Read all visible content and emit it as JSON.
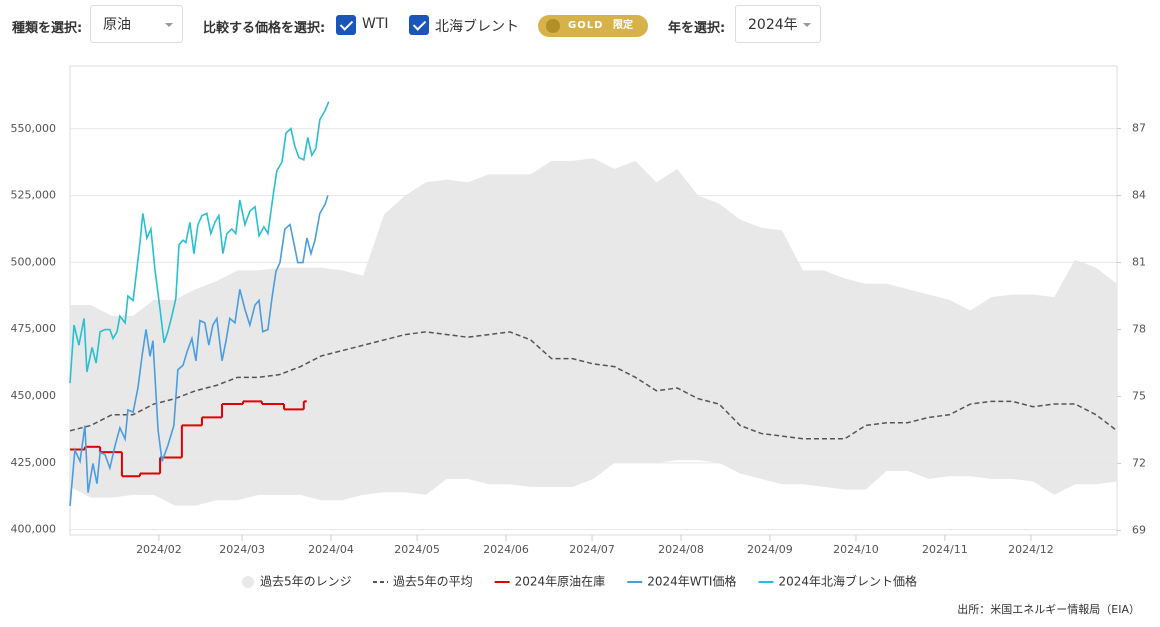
{
  "controls": {
    "type_label": "種類を選択:",
    "type_value": "原油",
    "compare_label": "比較する価格を選択:",
    "checks": [
      "WTI",
      "北海ブレント"
    ],
    "gold": "GOLD",
    "gold_limited": "限定",
    "year_label": "年を選択:",
    "year_value": "2024年"
  },
  "chart_data": {
    "type": "line",
    "source": "出所：米国エネルギー情報局（EIA）",
    "xlim": [
      0,
      365
    ],
    "xticks": [
      {
        "value": 31,
        "label": "2024/02"
      },
      {
        "value": 60,
        "label": "2024/03"
      },
      {
        "value": 91,
        "label": "2024/04"
      },
      {
        "value": 121,
        "label": "2024/05"
      },
      {
        "value": 152,
        "label": "2024/06"
      },
      {
        "value": 182,
        "label": "2024/07"
      },
      {
        "value": 213,
        "label": "2024/08"
      },
      {
        "value": 244,
        "label": "2024/09"
      },
      {
        "value": 274,
        "label": "2024/10"
      },
      {
        "value": 305,
        "label": "2024/11"
      },
      {
        "value": 335,
        "label": "2024/12"
      }
    ],
    "ylim": [
      398000,
      573500
    ],
    "yticks": [
      {
        "value": 400000,
        "label": "400,000"
      },
      {
        "value": 425000,
        "label": "425,000"
      },
      {
        "value": 450000,
        "label": "450,000"
      },
      {
        "value": 475000,
        "label": "475,000"
      },
      {
        "value": 500000,
        "label": "500,000"
      },
      {
        "value": 525000,
        "label": "525,000"
      },
      {
        "value": 550000,
        "label": "550,000"
      }
    ],
    "y2lim": [
      68.8,
      89.8
    ],
    "y2ticks": [
      69,
      72,
      75,
      78,
      81,
      84,
      87
    ],
    "grid": true,
    "range": {
      "name": "過去5年のレンジ",
      "color": "#e8e8e8",
      "x": [
        0,
        7.3,
        14.6,
        21.9,
        29.2,
        36.5,
        43.8,
        51.1,
        58.4,
        65.7,
        73,
        80.3,
        87.6,
        94.9,
        102.2,
        109.5,
        116.8,
        124.1,
        131.4,
        138.7,
        146,
        153.3,
        160.6,
        167.9,
        175.2,
        182.5,
        189.8,
        197.1,
        204.4,
        211.7,
        219,
        226.3,
        233.6,
        240.9,
        248.2,
        255.5,
        262.8,
        270.1,
        277.4,
        284.7,
        292,
        299.3,
        306.6,
        313.9,
        321.2,
        328.5,
        335.8,
        343.1,
        350.4,
        357.7,
        365
      ],
      "upper": [
        484000,
        484000,
        480000,
        480000,
        486000,
        486000,
        490000,
        493000,
        497000,
        497000,
        498000,
        498000,
        498000,
        497000,
        495000,
        518000,
        525000,
        530000,
        531000,
        530000,
        533000,
        533000,
        533000,
        538000,
        538000,
        539000,
        535000,
        538000,
        530000,
        535000,
        525000,
        522000,
        516000,
        513000,
        512000,
        497000,
        497000,
        494000,
        492000,
        492000,
        490000,
        488000,
        486000,
        482000,
        487000,
        488000,
        488000,
        487000,
        501000,
        498000,
        492000
      ],
      "lower": [
        416000,
        412000,
        412000,
        413000,
        413000,
        409000,
        409000,
        411000,
        411000,
        413000,
        413000,
        413000,
        411000,
        411000,
        413000,
        414000,
        414000,
        413000,
        419000,
        419000,
        417000,
        417000,
        416000,
        416000,
        416000,
        419000,
        425000,
        425000,
        425000,
        426000,
        426000,
        425000,
        421000,
        419000,
        417000,
        417000,
        416000,
        415000,
        415000,
        422000,
        422000,
        419000,
        420000,
        420000,
        419000,
        419000,
        418000,
        413000,
        417000,
        417000,
        418000
      ]
    },
    "series": [
      {
        "name": "過去5年の平均",
        "color": "#555555",
        "dash": true,
        "x": [
          0,
          7.3,
          14.6,
          21.9,
          29.2,
          36.5,
          43.8,
          51.1,
          58.4,
          65.7,
          73,
          80.3,
          87.6,
          94.9,
          102.2,
          109.5,
          116.8,
          124.1,
          131.4,
          138.7,
          146,
          153.3,
          160.6,
          167.9,
          175.2,
          182.5,
          189.8,
          197.1,
          204.4,
          211.7,
          219,
          226.3,
          233.6,
          240.9,
          248.2,
          255.5,
          262.8,
          270.1,
          277.4,
          284.7,
          292,
          299.3,
          306.6,
          313.9,
          321.2,
          328.5,
          335.8,
          343.1,
          350.4,
          357.7,
          365
        ],
        "values": [
          437000,
          439000,
          443000,
          443000,
          447000,
          449000,
          452000,
          454000,
          457000,
          457000,
          458000,
          461000,
          465000,
          467000,
          469000,
          471000,
          473000,
          474000,
          473000,
          472000,
          473000,
          474000,
          471000,
          464000,
          464000,
          462000,
          461000,
          457000,
          452000,
          453000,
          449000,
          447000,
          439000,
          436000,
          435000,
          434000,
          434000,
          434000,
          439000,
          440000,
          440000,
          442000,
          443000,
          447000,
          448000,
          448000,
          446000,
          447000,
          447000,
          443000,
          437000
        ]
      },
      {
        "name": "2024年原油在庫",
        "color": "#e00000",
        "step": true,
        "x": [
          0,
          5.2,
          10.5,
          18.1,
          24.4,
          31.4,
          39.0,
          46.0,
          53.0,
          60.3,
          66.9,
          74.6,
          81.5
        ],
        "values": [
          430000,
          431000,
          429000,
          420000,
          421000,
          427000,
          439000,
          442000,
          447000,
          448000,
          447000,
          445000,
          448000
        ]
      },
      {
        "name": "2024年WTI価格",
        "color": "#4a9de0",
        "axis": "y2",
        "x": [
          0,
          1.7,
          3.5,
          5.2,
          6.3,
          8.0,
          9.4,
          10.5,
          12.2,
          13.9,
          15.7,
          17.4,
          19.2,
          20.2,
          22.0,
          23.7,
          25.1,
          26.5,
          27.9,
          28.9,
          30.7,
          32.1,
          34.1,
          36.2,
          37.6,
          39.4,
          40.8,
          42.5,
          43.9,
          45.3,
          47.0,
          48.4,
          49.8,
          51.2,
          53.0,
          54.4,
          55.7,
          57.5,
          59.2,
          61.0,
          62.7,
          64.5,
          65.9,
          67.2,
          69.0,
          70.4,
          71.8,
          73.2,
          74.9,
          76.7,
          78.0,
          79.4,
          81.2,
          82.6,
          84.0,
          85.4,
          87.1,
          88.9,
          89.9
        ],
        "values": [
          70.1,
          72.6,
          72.1,
          73.7,
          70.7,
          72.0,
          71.1,
          72.5,
          72.4,
          71.8,
          72.8,
          73.6,
          73.1,
          74.4,
          74.3,
          75.4,
          76.8,
          78.0,
          76.8,
          77.5,
          73.5,
          72.1,
          72.8,
          73.7,
          76.2,
          76.4,
          77.0,
          77.6,
          76.6,
          78.4,
          78.3,
          77.3,
          78.2,
          78.5,
          76.6,
          77.5,
          78.5,
          78.3,
          79.8,
          78.9,
          78.2,
          79.1,
          79.3,
          77.9,
          78.0,
          79.4,
          80.6,
          81.0,
          82.5,
          82.7,
          81.9,
          81.0,
          81.0,
          82.1,
          81.4,
          82.0,
          83.2,
          83.6,
          84.0
        ]
      },
      {
        "name": "2024年北海ブレント価格",
        "color": "#27c0d0",
        "axis": "y2",
        "x": [
          0,
          1.4,
          3.1,
          4.9,
          5.9,
          7.7,
          9.1,
          10.5,
          12.2,
          13.9,
          15.0,
          16.4,
          17.4,
          19.2,
          20.2,
          22.0,
          23.3,
          24.4,
          25.4,
          26.8,
          28.2,
          29.6,
          31.4,
          32.8,
          34.1,
          35.5,
          36.9,
          38.0,
          39.4,
          40.4,
          41.8,
          43.2,
          44.6,
          46.0,
          47.7,
          49.1,
          50.5,
          51.9,
          53.3,
          54.7,
          56.4,
          57.8,
          59.2,
          61.0,
          62.7,
          64.5,
          65.9,
          67.6,
          69.0,
          70.7,
          72.1,
          73.9,
          75.3,
          77.0,
          78.4,
          79.8,
          81.5,
          82.9,
          84.3,
          85.7,
          87.1,
          88.9,
          90.2
        ],
        "values": [
          75.6,
          78.2,
          77.3,
          78.5,
          76.1,
          77.2,
          76.5,
          77.9,
          78.0,
          78.0,
          77.6,
          77.9,
          78.6,
          78.3,
          79.5,
          79.3,
          80.7,
          81.9,
          83.2,
          82.1,
          82.5,
          80.7,
          78.9,
          77.4,
          77.9,
          78.6,
          79.4,
          81.8,
          82.0,
          81.9,
          82.8,
          81.4,
          82.7,
          83.1,
          83.2,
          82.3,
          82.8,
          83.1,
          81.4,
          82.3,
          82.5,
          82.3,
          83.8,
          82.7,
          83.3,
          83.5,
          82.2,
          82.6,
          82.3,
          83.9,
          85.1,
          85.5,
          86.8,
          87.0,
          86.2,
          85.7,
          85.6,
          86.6,
          85.8,
          86.1,
          87.4,
          87.8,
          88.2
        ]
      }
    ]
  }
}
